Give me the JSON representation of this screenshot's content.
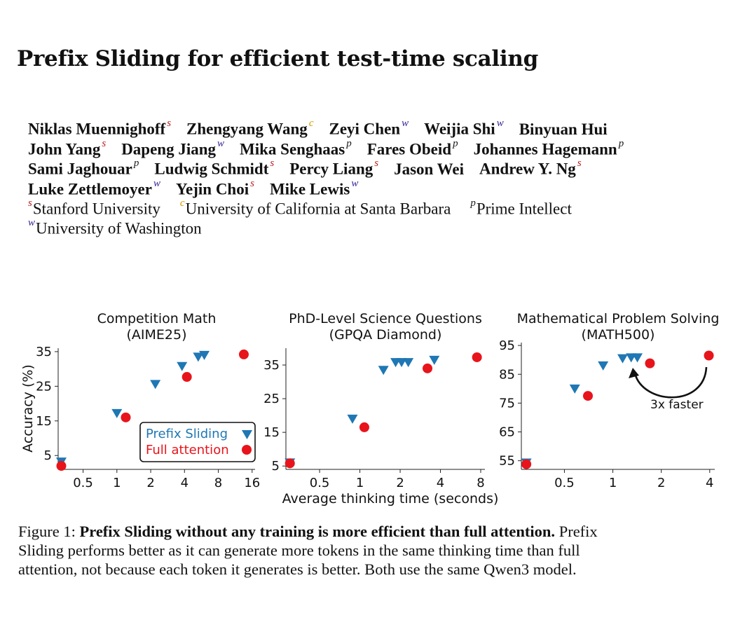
{
  "title": "Prefix Sliding for efficient test-time scaling",
  "colors": {
    "s": "#b81c1c",
    "c": "#d39a00",
    "w": "#3b2596",
    "p": "#1a1a1a",
    "prefix": "#1f77b4",
    "full": "#e8141b"
  },
  "authors": [
    [
      {
        "name": "Niklas Muennighoff",
        "mark": "s"
      },
      {
        "name": "Zhengyang Wang",
        "mark": "c"
      },
      {
        "name": "Zeyi Chen",
        "mark": "w"
      },
      {
        "name": "Weijia Shi",
        "mark": "w"
      },
      {
        "name": "Binyuan Hui",
        "mark": ""
      }
    ],
    [
      {
        "name": "John Yang",
        "mark": "s"
      },
      {
        "name": "Dapeng Jiang",
        "mark": "w"
      },
      {
        "name": "Mika Senghaas",
        "mark": "p"
      },
      {
        "name": "Fares Obeid",
        "mark": "p"
      },
      {
        "name": "Johannes Hagemann",
        "mark": "p"
      }
    ],
    [
      {
        "name": "Sami Jaghouar",
        "mark": "p"
      },
      {
        "name": "Ludwig Schmidt",
        "mark": "s"
      },
      {
        "name": "Percy Liang",
        "mark": "s"
      },
      {
        "name": "Jason Wei",
        "mark": ""
      },
      {
        "name": "Andrew Y. Ng",
        "mark": "s"
      }
    ],
    [
      {
        "name": "Luke Zettlemoyer",
        "mark": "w"
      },
      {
        "name": "Yejin Choi",
        "mark": "s"
      },
      {
        "name": "Mike Lewis",
        "mark": "w"
      }
    ]
  ],
  "affiliations": [
    [
      {
        "mark": "s",
        "name": "Stanford University"
      },
      {
        "mark": "c",
        "name": "University of California at Santa Barbara"
      },
      {
        "mark": "p",
        "name": "Prime Intellect"
      }
    ],
    [
      {
        "mark": "w",
        "name": "University of Washington"
      }
    ]
  ],
  "figure": {
    "ylabel": "Accuracy (%)",
    "xlabel": "Average thinking time (seconds)",
    "legend": {
      "prefix": "Prefix Sliding",
      "full": "Full attention"
    },
    "annotation": "3x faster"
  },
  "chart_data": [
    {
      "type": "scatter",
      "title": "Competition Math",
      "subtitle": "(AIME25)",
      "xscale": "log",
      "xlim": [
        0.3,
        17
      ],
      "ylim": [
        1,
        36
      ],
      "xticks": [
        0.5,
        1,
        2,
        4,
        8,
        16
      ],
      "xticklabels": [
        "0.5",
        "1",
        "2",
        "4",
        "8",
        "16"
      ],
      "yticks": [
        5,
        15,
        25,
        35
      ],
      "series": [
        {
          "name": "Prefix Sliding",
          "marker": "triangle-down",
          "points": [
            [
              0.32,
              3.2
            ],
            [
              1.0,
              17.2
            ],
            [
              2.2,
              25.6
            ],
            [
              3.8,
              30.8
            ],
            [
              5.3,
              33.5
            ],
            [
              6.0,
              34.0
            ]
          ]
        },
        {
          "name": "Full attention",
          "marker": "circle",
          "points": [
            [
              0.32,
              2.0
            ],
            [
              1.2,
              16.0
            ],
            [
              4.2,
              27.7
            ],
            [
              13.5,
              34.2
            ]
          ]
        }
      ]
    },
    {
      "type": "scatter",
      "title": "PhD-Level Science Questions",
      "subtitle": "(GPQA Diamond)",
      "xscale": "log",
      "xlim": [
        0.28,
        8.6
      ],
      "ylim": [
        4,
        40
      ],
      "xticks": [
        0.5,
        1,
        2,
        4,
        8
      ],
      "xticklabels": [
        "0.5",
        "1",
        "2",
        "4",
        "8"
      ],
      "yticks": [
        5,
        15,
        25,
        35
      ],
      "series": [
        {
          "name": "Prefix Sliding",
          "marker": "triangle-down",
          "points": [
            [
              0.3,
              6.0
            ],
            [
              0.88,
              19.0
            ],
            [
              1.5,
              33.5
            ],
            [
              1.85,
              35.8
            ],
            [
              2.05,
              35.8
            ],
            [
              2.3,
              35.8
            ],
            [
              3.6,
              36.5
            ]
          ]
        },
        {
          "name": "Full attention",
          "marker": "circle",
          "points": [
            [
              0.3,
              5.8
            ],
            [
              1.08,
              16.5
            ],
            [
              3.2,
              34.0
            ],
            [
              7.5,
              37.3
            ]
          ]
        }
      ]
    },
    {
      "type": "scatter",
      "title": "Mathematical Problem Solving",
      "subtitle": "(MATH500)",
      "xscale": "log",
      "xlim": [
        0.27,
        4.3
      ],
      "ylim": [
        52,
        96
      ],
      "xticks": [
        0.5,
        1,
        2,
        4
      ],
      "xticklabels": [
        "0.5",
        "1",
        "2",
        "4"
      ],
      "yticks": [
        55,
        65,
        75,
        85,
        95
      ],
      "series": [
        {
          "name": "Prefix Sliding",
          "marker": "triangle-down",
          "points": [
            [
              0.29,
              54.3
            ],
            [
              0.58,
              80.0
            ],
            [
              0.87,
              88.0
            ],
            [
              1.15,
              90.5
            ],
            [
              1.3,
              90.8
            ],
            [
              1.42,
              90.8
            ]
          ]
        },
        {
          "name": "Full attention",
          "marker": "circle",
          "points": [
            [
              0.29,
              53.8
            ],
            [
              0.7,
              77.5
            ],
            [
              1.7,
              88.8
            ],
            [
              3.95,
              91.5
            ]
          ]
        }
      ]
    }
  ],
  "caption": {
    "prefix": "Figure 1:",
    "bold": "Prefix Sliding without any training is more efficient than full attention.",
    "line1_rest": "Prefix",
    "line2": "Sliding performs better as it can generate more tokens in the same thinking time than full",
    "line3": "attention, not because each token it generates is better. Both use the same Qwen3 model."
  }
}
